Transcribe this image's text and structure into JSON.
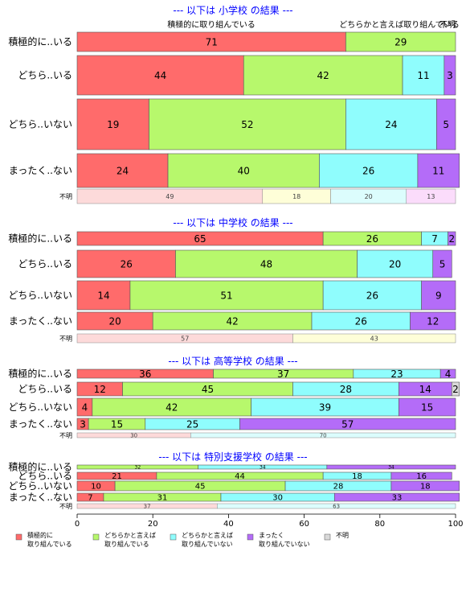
{
  "chart_data": {
    "type": "bar",
    "orientation": "horizontal",
    "stacked_percent": true,
    "colors": {
      "積極的に取り組んでいる": "#ff6b6b",
      "どちらかと言えば取り組んでいる": "#b7f86c",
      "どちらかと言えば取り組んでいない": "#8ffdfd",
      "まったく取り組んでいない": "#b46cf8",
      "不明": "#d9d9d9"
    },
    "unknown_row_colors": [
      "#fddada",
      "#fefed8",
      "#dcfdfd",
      "#fbdcfb"
    ],
    "top_labels": [
      "積極的に取り組んでいる",
      "どちらかと言えば取り組んでいる",
      "不明"
    ],
    "xaxis": {
      "min": 0,
      "max": 100,
      "ticks": [
        0,
        20,
        40,
        60,
        80,
        100
      ]
    },
    "legend": {
      "position": "bottom",
      "items": [
        {
          "line1": "積極的に",
          "line2": "取り組んでいる",
          "color": "#ff6b6b"
        },
        {
          "line1": "どちらかと言えば",
          "line2": "取り組んでいる",
          "color": "#b7f86c"
        },
        {
          "line1": "どちらかと言えば",
          "line2": "取り組んでいない",
          "color": "#8ffdfd"
        },
        {
          "line1": "まったく",
          "line2": "取り組んでいない",
          "color": "#b46cf8"
        },
        {
          "line1": "不明",
          "line2": "",
          "color": "#d9d9d9"
        }
      ]
    },
    "panels": [
      {
        "title": "--- 以下は 小学校 の結果 ---",
        "rows": [
          {
            "label": "積極的に..いる",
            "values": [
              71,
              29,
              0,
              0,
              0
            ]
          },
          {
            "label": "どちら..いる",
            "values": [
              44,
              42,
              11,
              3,
              0
            ]
          },
          {
            "label": "どちら..いない",
            "values": [
              19,
              52,
              24,
              5,
              0
            ]
          },
          {
            "label": "まったく..ない",
            "values": [
              24,
              40,
              26,
              11,
              0
            ]
          }
        ],
        "unknown": {
          "label": "不明",
          "values": [
            49,
            18,
            20,
            13
          ]
        }
      },
      {
        "title": "--- 以下は 中学校 の結果 ---",
        "rows": [
          {
            "label": "積極的に..いる",
            "values": [
              65,
              26,
              7,
              2,
              0
            ]
          },
          {
            "label": "どちら..いる",
            "values": [
              26,
              48,
              20,
              5,
              0
            ]
          },
          {
            "label": "どちら..いない",
            "values": [
              14,
              51,
              26,
              9,
              0
            ]
          },
          {
            "label": "まったく..ない",
            "values": [
              20,
              42,
              26,
              12,
              0
            ]
          }
        ],
        "unknown": {
          "label": "不明",
          "values": [
            57,
            43,
            0,
            0
          ]
        }
      },
      {
        "title": "--- 以下は 高等学校 の結果 ---",
        "rows": [
          {
            "label": "積極的に..いる",
            "values": [
              36,
              37,
              23,
              4,
              0
            ]
          },
          {
            "label": "どちら..いる",
            "values": [
              12,
              45,
              28,
              14,
              2
            ]
          },
          {
            "label": "どちら..いない",
            "values": [
              4,
              42,
              39,
              15,
              0
            ]
          },
          {
            "label": "まったく..ない",
            "values": [
              3,
              15,
              25,
              57,
              0
            ]
          }
        ],
        "unknown": {
          "label": "不明",
          "values": [
            30,
            0,
            70,
            0
          ]
        }
      },
      {
        "title": "--- 以下は 特別支援学校 の結果 ---",
        "rows": [
          {
            "label": "積極的に..いる",
            "values": [
              0,
              32,
              34,
              34,
              0
            ]
          },
          {
            "label": "どちら..いる",
            "values": [
              21,
              44,
              18,
              16,
              0
            ]
          },
          {
            "label": "どちら..いない",
            "values": [
              10,
              45,
              28,
              18,
              0
            ]
          },
          {
            "label": "まったく..ない",
            "values": [
              7,
              31,
              30,
              33,
              0
            ]
          }
        ],
        "unknown": {
          "label": "不明",
          "values": [
            37,
            0,
            63,
            0
          ]
        }
      }
    ]
  }
}
